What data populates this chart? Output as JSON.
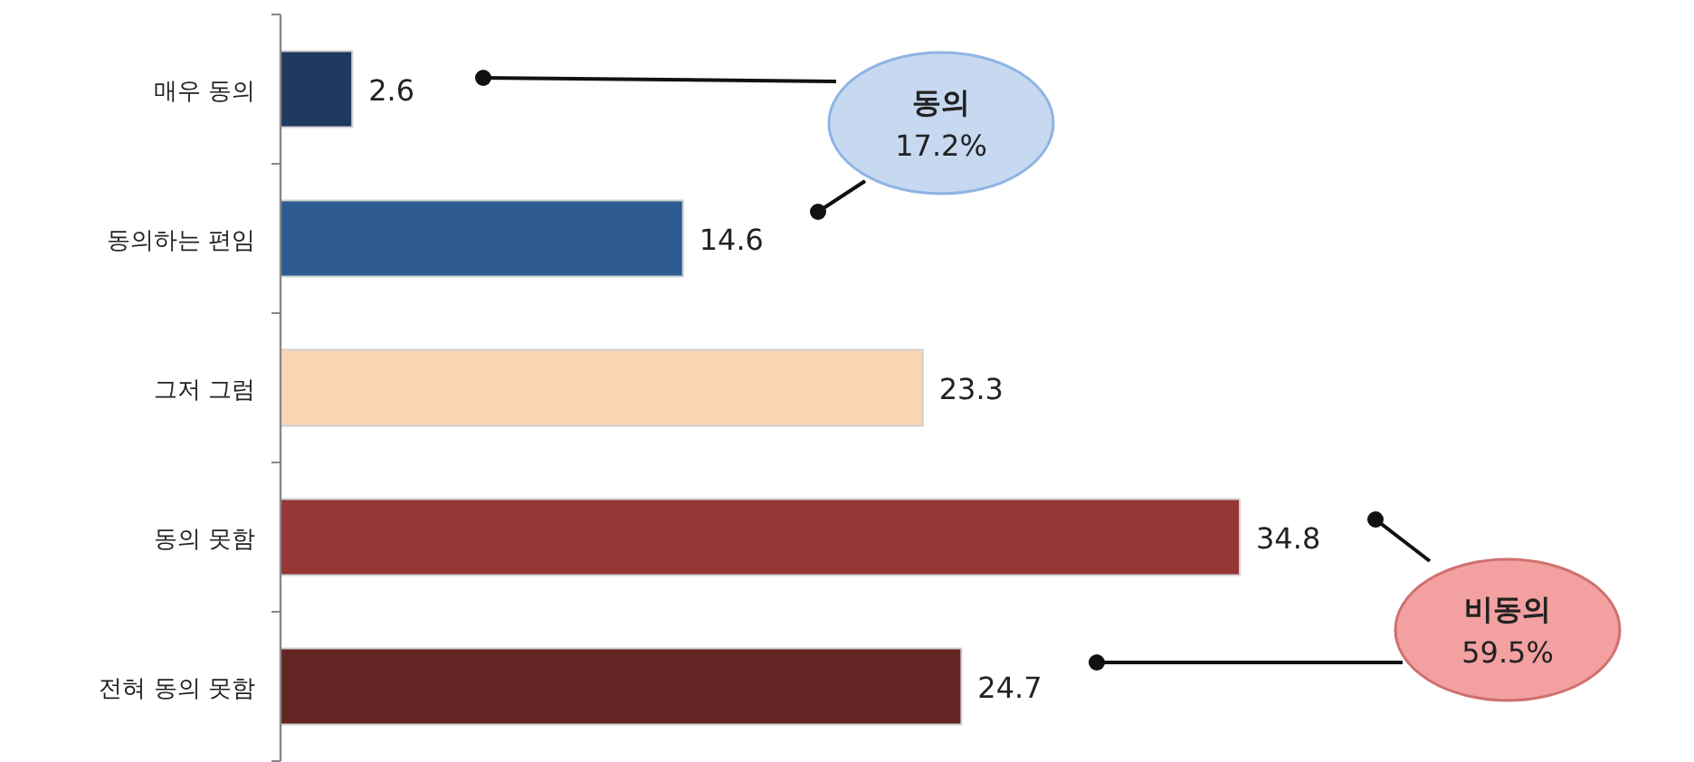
{
  "chart_data": {
    "type": "bar",
    "orientation": "horizontal",
    "categories": [
      "매우 동의",
      "동의하는 편임",
      "그저 그럼",
      "동의 못함",
      "전혀 동의 못함"
    ],
    "values": [
      2.6,
      14.6,
      23.3,
      34.8,
      24.7
    ],
    "colors": [
      "#1f3a5f",
      "#2f5b93",
      "#fcd5b4",
      "#953735",
      "#632523"
    ],
    "data_labels": true,
    "annotations": [
      "동의 17.2%",
      "비동의 59.5%"
    ]
  }
}
